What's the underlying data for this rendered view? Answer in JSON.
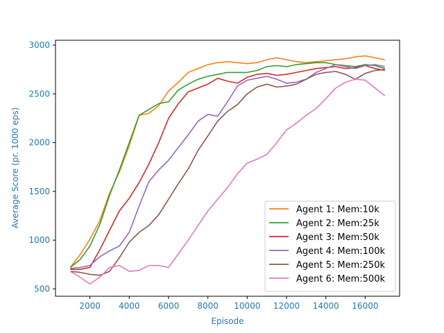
{
  "chart_data": {
    "type": "line",
    "xlabel": "Episode",
    "ylabel": "Average Score (pr. 1000 eps)",
    "xlim": [
      250,
      17750
    ],
    "ylim": [
      425,
      3050
    ],
    "xticks": [
      2000,
      4000,
      6000,
      8000,
      10000,
      12000,
      14000,
      16000
    ],
    "yticks": [
      500,
      1000,
      1500,
      2000,
      2500,
      3000
    ],
    "grid": false,
    "legend_position": "lower-right",
    "series": [
      {
        "name": "Agent 1: Mem:10k",
        "color": "#ff7f0e",
        "x": [
          1000,
          1500,
          2000,
          2500,
          3000,
          3500,
          4000,
          4500,
          5000,
          5500,
          6000,
          6500,
          7000,
          7500,
          8000,
          8500,
          9000,
          9500,
          10000,
          10500,
          11000,
          11500,
          12000,
          12500,
          13000,
          13500,
          14000,
          14500,
          15000,
          15500,
          16000,
          16500,
          17000
        ],
        "y": [
          720,
          850,
          1010,
          1200,
          1480,
          1700,
          1970,
          2280,
          2300,
          2380,
          2530,
          2620,
          2720,
          2760,
          2800,
          2820,
          2830,
          2820,
          2810,
          2820,
          2850,
          2870,
          2850,
          2830,
          2820,
          2830,
          2840,
          2850,
          2860,
          2880,
          2890,
          2870,
          2850
        ]
      },
      {
        "name": "Agent 2: Mem:25k",
        "color": "#2ca02c",
        "x": [
          1000,
          1500,
          2000,
          2500,
          3000,
          3500,
          4000,
          4500,
          5000,
          5500,
          6000,
          6500,
          7000,
          7500,
          8000,
          8500,
          9000,
          9500,
          10000,
          10500,
          11000,
          11500,
          12000,
          12500,
          13000,
          13500,
          14000,
          14500,
          15000,
          15500,
          16000,
          16500,
          17000
        ],
        "y": [
          720,
          800,
          940,
          1160,
          1460,
          1720,
          2000,
          2280,
          2340,
          2400,
          2420,
          2540,
          2600,
          2650,
          2680,
          2700,
          2720,
          2720,
          2720,
          2740,
          2780,
          2790,
          2780,
          2800,
          2810,
          2820,
          2820,
          2800,
          2790,
          2780,
          2800,
          2790,
          2760
        ]
      },
      {
        "name": "Agent 3: Mem:50k",
        "color": "#d62728",
        "x": [
          1000,
          1500,
          2000,
          2500,
          3000,
          3500,
          4000,
          4500,
          5000,
          5500,
          6000,
          6500,
          7000,
          7500,
          8000,
          8500,
          9000,
          9500,
          10000,
          10500,
          11000,
          11500,
          12000,
          12500,
          13000,
          13500,
          14000,
          14500,
          15000,
          15500,
          16000,
          16500,
          17000
        ],
        "y": [
          700,
          700,
          720,
          900,
          1100,
          1300,
          1430,
          1590,
          1780,
          2000,
          2250,
          2400,
          2520,
          2560,
          2600,
          2660,
          2630,
          2610,
          2670,
          2700,
          2710,
          2690,
          2700,
          2720,
          2740,
          2760,
          2770,
          2780,
          2760,
          2770,
          2790,
          2760,
          2740
        ]
      },
      {
        "name": "Agent 4: Mem:100k",
        "color": "#9467bd",
        "x": [
          1000,
          1500,
          2000,
          2500,
          3000,
          3500,
          4000,
          4500,
          5000,
          5500,
          6000,
          6500,
          7000,
          7500,
          8000,
          8500,
          9000,
          9500,
          10000,
          10500,
          11000,
          11500,
          12000,
          12500,
          13000,
          13500,
          14000,
          14500,
          15000,
          15500,
          16000,
          16500,
          17000
        ],
        "y": [
          710,
          720,
          740,
          830,
          890,
          940,
          1080,
          1350,
          1600,
          1720,
          1820,
          1950,
          2080,
          2220,
          2290,
          2270,
          2420,
          2580,
          2640,
          2660,
          2680,
          2650,
          2610,
          2620,
          2650,
          2720,
          2760,
          2800,
          2780,
          2760,
          2790,
          2800,
          2780
        ]
      },
      {
        "name": "Agent 5: Mem:250k",
        "color": "#8c564b",
        "x": [
          1000,
          1500,
          2000,
          2500,
          3000,
          3500,
          4000,
          4500,
          5000,
          5500,
          6000,
          6500,
          7000,
          7500,
          8000,
          8500,
          9000,
          9500,
          10000,
          10500,
          11000,
          11500,
          12000,
          12500,
          13000,
          13500,
          14000,
          14500,
          15000,
          15500,
          16000,
          16500,
          17000
        ],
        "y": [
          680,
          670,
          650,
          640,
          680,
          820,
          980,
          1080,
          1150,
          1260,
          1420,
          1580,
          1730,
          1920,
          2070,
          2220,
          2320,
          2390,
          2500,
          2570,
          2600,
          2570,
          2580,
          2600,
          2650,
          2700,
          2720,
          2730,
          2700,
          2650,
          2710,
          2740,
          2750
        ]
      },
      {
        "name": "Agent 6: Mem:500k",
        "color": "#e377c2",
        "x": [
          1000,
          1500,
          2000,
          2500,
          3000,
          3500,
          4000,
          4500,
          5000,
          5500,
          6000,
          6500,
          7000,
          7500,
          8000,
          8500,
          9000,
          9500,
          10000,
          10500,
          11000,
          11500,
          12000,
          12500,
          13000,
          13500,
          14000,
          14500,
          15000,
          15500,
          16000,
          16500,
          17000
        ],
        "y": [
          680,
          620,
          550,
          620,
          720,
          740,
          680,
          690,
          740,
          740,
          720,
          860,
          1000,
          1150,
          1300,
          1420,
          1540,
          1680,
          1790,
          1830,
          1880,
          2000,
          2130,
          2200,
          2280,
          2350,
          2450,
          2560,
          2620,
          2650,
          2640,
          2560,
          2480
        ]
      }
    ]
  }
}
